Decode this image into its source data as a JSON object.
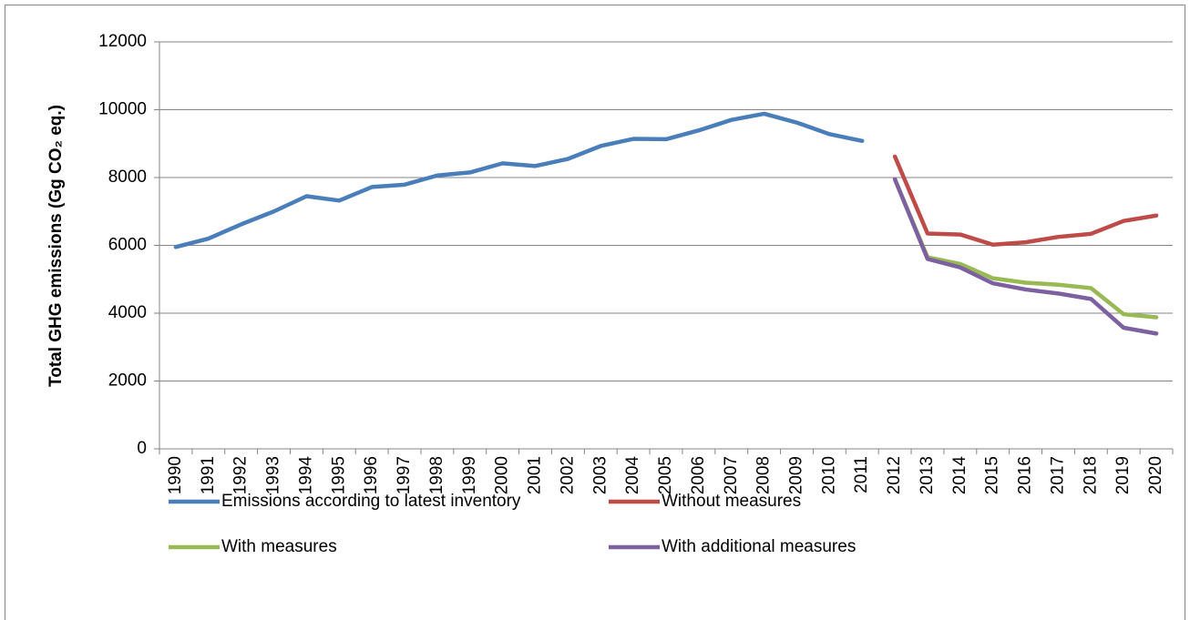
{
  "chart_data": {
    "type": "line",
    "y_label": "Total GHG emissions (Gg CO₂ eq.)",
    "categories": [
      "1990",
      "1991",
      "1992",
      "1993",
      "1994",
      "1995",
      "1996",
      "1997",
      "1998",
      "1999",
      "2000",
      "2001",
      "2002",
      "2003",
      "2004",
      "2005",
      "2006",
      "2007",
      "2008",
      "2009",
      "2010",
      "2011",
      "2012",
      "2013",
      "2014",
      "2015",
      "2016",
      "2017",
      "2018",
      "2019",
      "2020"
    ],
    "series": [
      {
        "name": "Emissions according to latest inventory",
        "color": "#4a7ebb",
        "values": [
          5950,
          6200,
          6620,
          7000,
          7450,
          7320,
          7720,
          7790,
          8060,
          8150,
          8420,
          8340,
          8550,
          8930,
          9140,
          9130,
          9390,
          9700,
          9880,
          9620,
          9280,
          9080,
          null,
          null,
          null,
          null,
          null,
          null,
          null,
          null,
          null
        ]
      },
      {
        "name": "Without measures",
        "color": "#be4b48",
        "values": [
          null,
          null,
          null,
          null,
          null,
          null,
          null,
          null,
          null,
          null,
          null,
          null,
          null,
          null,
          null,
          null,
          null,
          null,
          null,
          null,
          null,
          null,
          8620,
          6350,
          6320,
          6020,
          6090,
          6250,
          6340,
          6720,
          6880
        ]
      },
      {
        "name": "With measures",
        "color": "#98b954",
        "values": [
          null,
          null,
          null,
          null,
          null,
          null,
          null,
          null,
          null,
          null,
          null,
          null,
          null,
          null,
          null,
          null,
          null,
          null,
          null,
          null,
          null,
          null,
          7950,
          5650,
          5450,
          5030,
          4900,
          4840,
          4740,
          3970,
          3880
        ]
      },
      {
        "name": "With additional measures",
        "color": "#7d60a0",
        "values": [
          null,
          null,
          null,
          null,
          null,
          null,
          null,
          null,
          null,
          null,
          null,
          null,
          null,
          null,
          null,
          null,
          null,
          null,
          null,
          null,
          null,
          null,
          7950,
          5600,
          5350,
          4880,
          4700,
          4580,
          4420,
          3570,
          3400
        ]
      }
    ],
    "ylim": [
      0,
      12000
    ],
    "yticks": [
      0,
      2000,
      4000,
      6000,
      8000,
      10000,
      12000
    ],
    "grid": true,
    "legend": "bottom"
  }
}
